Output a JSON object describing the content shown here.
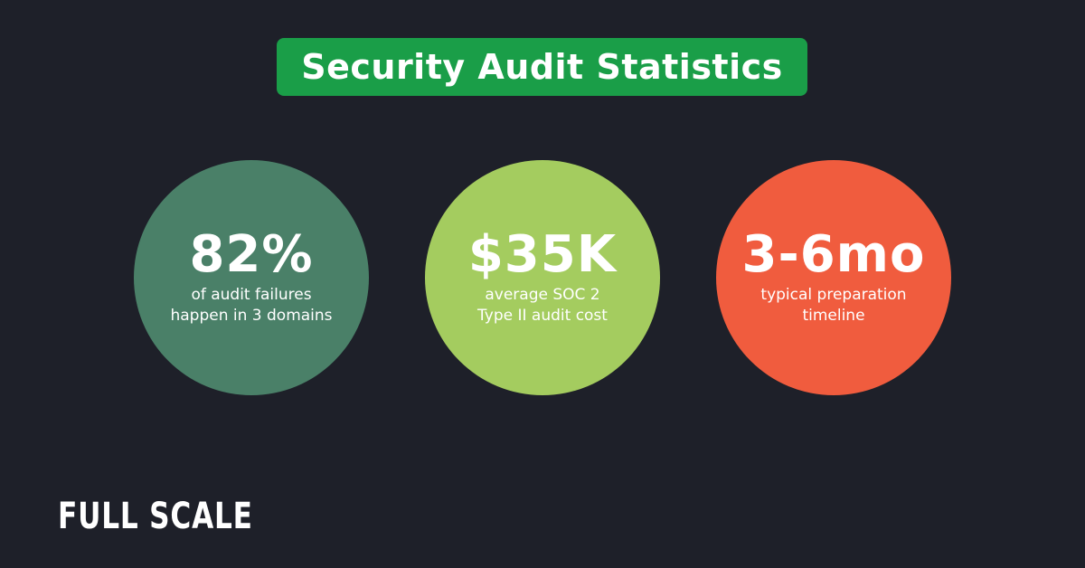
{
  "header": {
    "title": "Security Audit Statistics"
  },
  "stats": [
    {
      "value": "82%",
      "description": [
        "of audit failures",
        "happen in 3 domains"
      ]
    },
    {
      "value": "$35K",
      "description": [
        "average SOC 2",
        "Type II audit cost"
      ]
    },
    {
      "value": "3-6mo",
      "description": [
        "typical preparation",
        "timeline"
      ]
    }
  ],
  "footer": {
    "logo": "FULL SCALE"
  }
}
